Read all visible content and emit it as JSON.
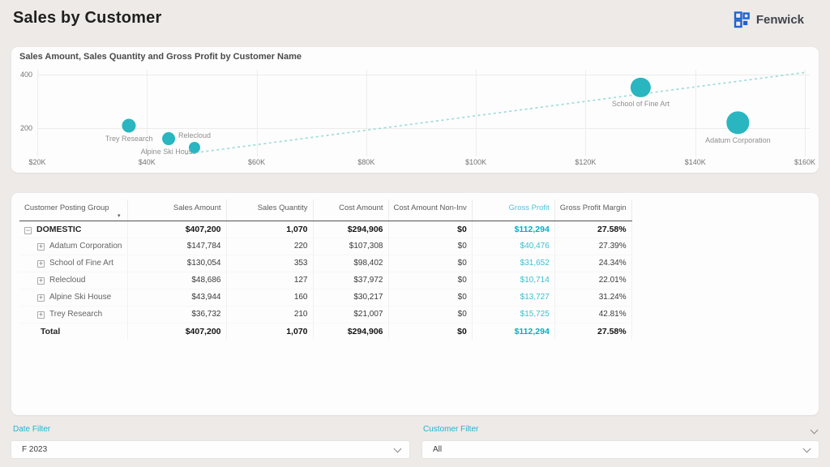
{
  "page": {
    "title": "Sales by Customer",
    "brand": "Fenwick"
  },
  "chart": {
    "title": "Sales Amount, Sales Quantity and Gross Profit by Customer Name"
  },
  "chart_data": {
    "type": "scatter",
    "title": "Sales Amount, Sales Quantity and Gross Profit by Customer Name",
    "xlabel": "Sales Amount",
    "ylabel": "Sales Quantity",
    "size_by": "Gross Profit",
    "x_ticks": [
      {
        "value": 20000,
        "label": "$20K"
      },
      {
        "value": 40000,
        "label": "$40K"
      },
      {
        "value": 60000,
        "label": "$60K"
      },
      {
        "value": 80000,
        "label": "$80K"
      },
      {
        "value": 100000,
        "label": "$100K"
      },
      {
        "value": 120000,
        "label": "$120K"
      },
      {
        "value": 140000,
        "label": "$140K"
      },
      {
        "value": 160000,
        "label": "$160K"
      }
    ],
    "y_ticks": [
      {
        "value": 200,
        "label": "200"
      },
      {
        "value": 400,
        "label": "400"
      }
    ],
    "xlim": [
      20000,
      160000
    ],
    "grid": true,
    "points": [
      {
        "name": "Trey Research",
        "sales_amount": 36732,
        "sales_quantity": 210,
        "gross_profit": 15725,
        "label_pos": "below"
      },
      {
        "name": "Alpine Ski House",
        "sales_amount": 43944,
        "sales_quantity": 160,
        "gross_profit": 13727,
        "label_pos": "below"
      },
      {
        "name": "Relecloud",
        "sales_amount": 48686,
        "sales_quantity": 127,
        "gross_profit": 10714,
        "label_pos": "above"
      },
      {
        "name": "School of Fine Art",
        "sales_amount": 130054,
        "sales_quantity": 353,
        "gross_profit": 31652,
        "label_pos": "below"
      },
      {
        "name": "Adatum Corporation",
        "sales_amount": 147784,
        "sales_quantity": 220,
        "gross_profit": 40476,
        "label_pos": "below"
      }
    ],
    "trend_line": {
      "start": {
        "x": 47000,
        "y": 103
      },
      "end": {
        "x": 160000,
        "y": 408
      },
      "style": "dashed"
    }
  },
  "table": {
    "columns": [
      {
        "label": "Customer Posting Group",
        "align": "left",
        "accent": false
      },
      {
        "label": "Sales Amount",
        "align": "right",
        "accent": false
      },
      {
        "label": "Sales Quantity",
        "align": "right",
        "accent": false
      },
      {
        "label": "Cost Amount",
        "align": "right",
        "accent": false
      },
      {
        "label": "Cost Amount Non-Inv",
        "align": "right",
        "accent": false
      },
      {
        "label": "Gross Profit",
        "align": "right",
        "accent": true
      },
      {
        "label": "Gross Profit Margin",
        "align": "right",
        "accent": false
      }
    ],
    "rows": [
      {
        "name": "DOMESTIC",
        "icon": "collapse",
        "level": 0,
        "bold": true,
        "values": [
          "$407,200",
          "1,070",
          "$294,906",
          "$0",
          "$112,294",
          "27.58%"
        ]
      },
      {
        "name": "Adatum Corporation",
        "icon": "expand",
        "level": 1,
        "bold": false,
        "values": [
          "$147,784",
          "220",
          "$107,308",
          "$0",
          "$40,476",
          "27.39%"
        ]
      },
      {
        "name": "School of Fine Art",
        "icon": "expand",
        "level": 1,
        "bold": false,
        "values": [
          "$130,054",
          "353",
          "$98,402",
          "$0",
          "$31,652",
          "24.34%"
        ]
      },
      {
        "name": "Relecloud",
        "icon": "expand",
        "level": 1,
        "bold": false,
        "values": [
          "$48,686",
          "127",
          "$37,972",
          "$0",
          "$10,714",
          "22.01%"
        ]
      },
      {
        "name": "Alpine Ski House",
        "icon": "expand",
        "level": 1,
        "bold": false,
        "values": [
          "$43,944",
          "160",
          "$30,217",
          "$0",
          "$13,727",
          "31.24%"
        ]
      },
      {
        "name": "Trey Research",
        "icon": "expand",
        "level": 1,
        "bold": false,
        "values": [
          "$36,732",
          "210",
          "$21,007",
          "$0",
          "$15,725",
          "42.81%"
        ]
      }
    ],
    "total": {
      "name": "Total",
      "bold": true,
      "values": [
        "$407,200",
        "1,070",
        "$294,906",
        "$0",
        "$112,294",
        "27.58%"
      ]
    }
  },
  "filters": {
    "date": {
      "label": "Date Filter",
      "value": "F 2023"
    },
    "customer": {
      "label": "Customer Filter",
      "value": "All"
    }
  },
  "colors": {
    "bubble": "#29b6c0",
    "trend": "#9fdcd9",
    "gross_profit_header": "#4fc4da",
    "gross_profit_value": "#3cc0d0",
    "gross_profit_total": "#00afc9",
    "filter_label": "#22b3d4",
    "logo_blue": "#1e63cf"
  }
}
